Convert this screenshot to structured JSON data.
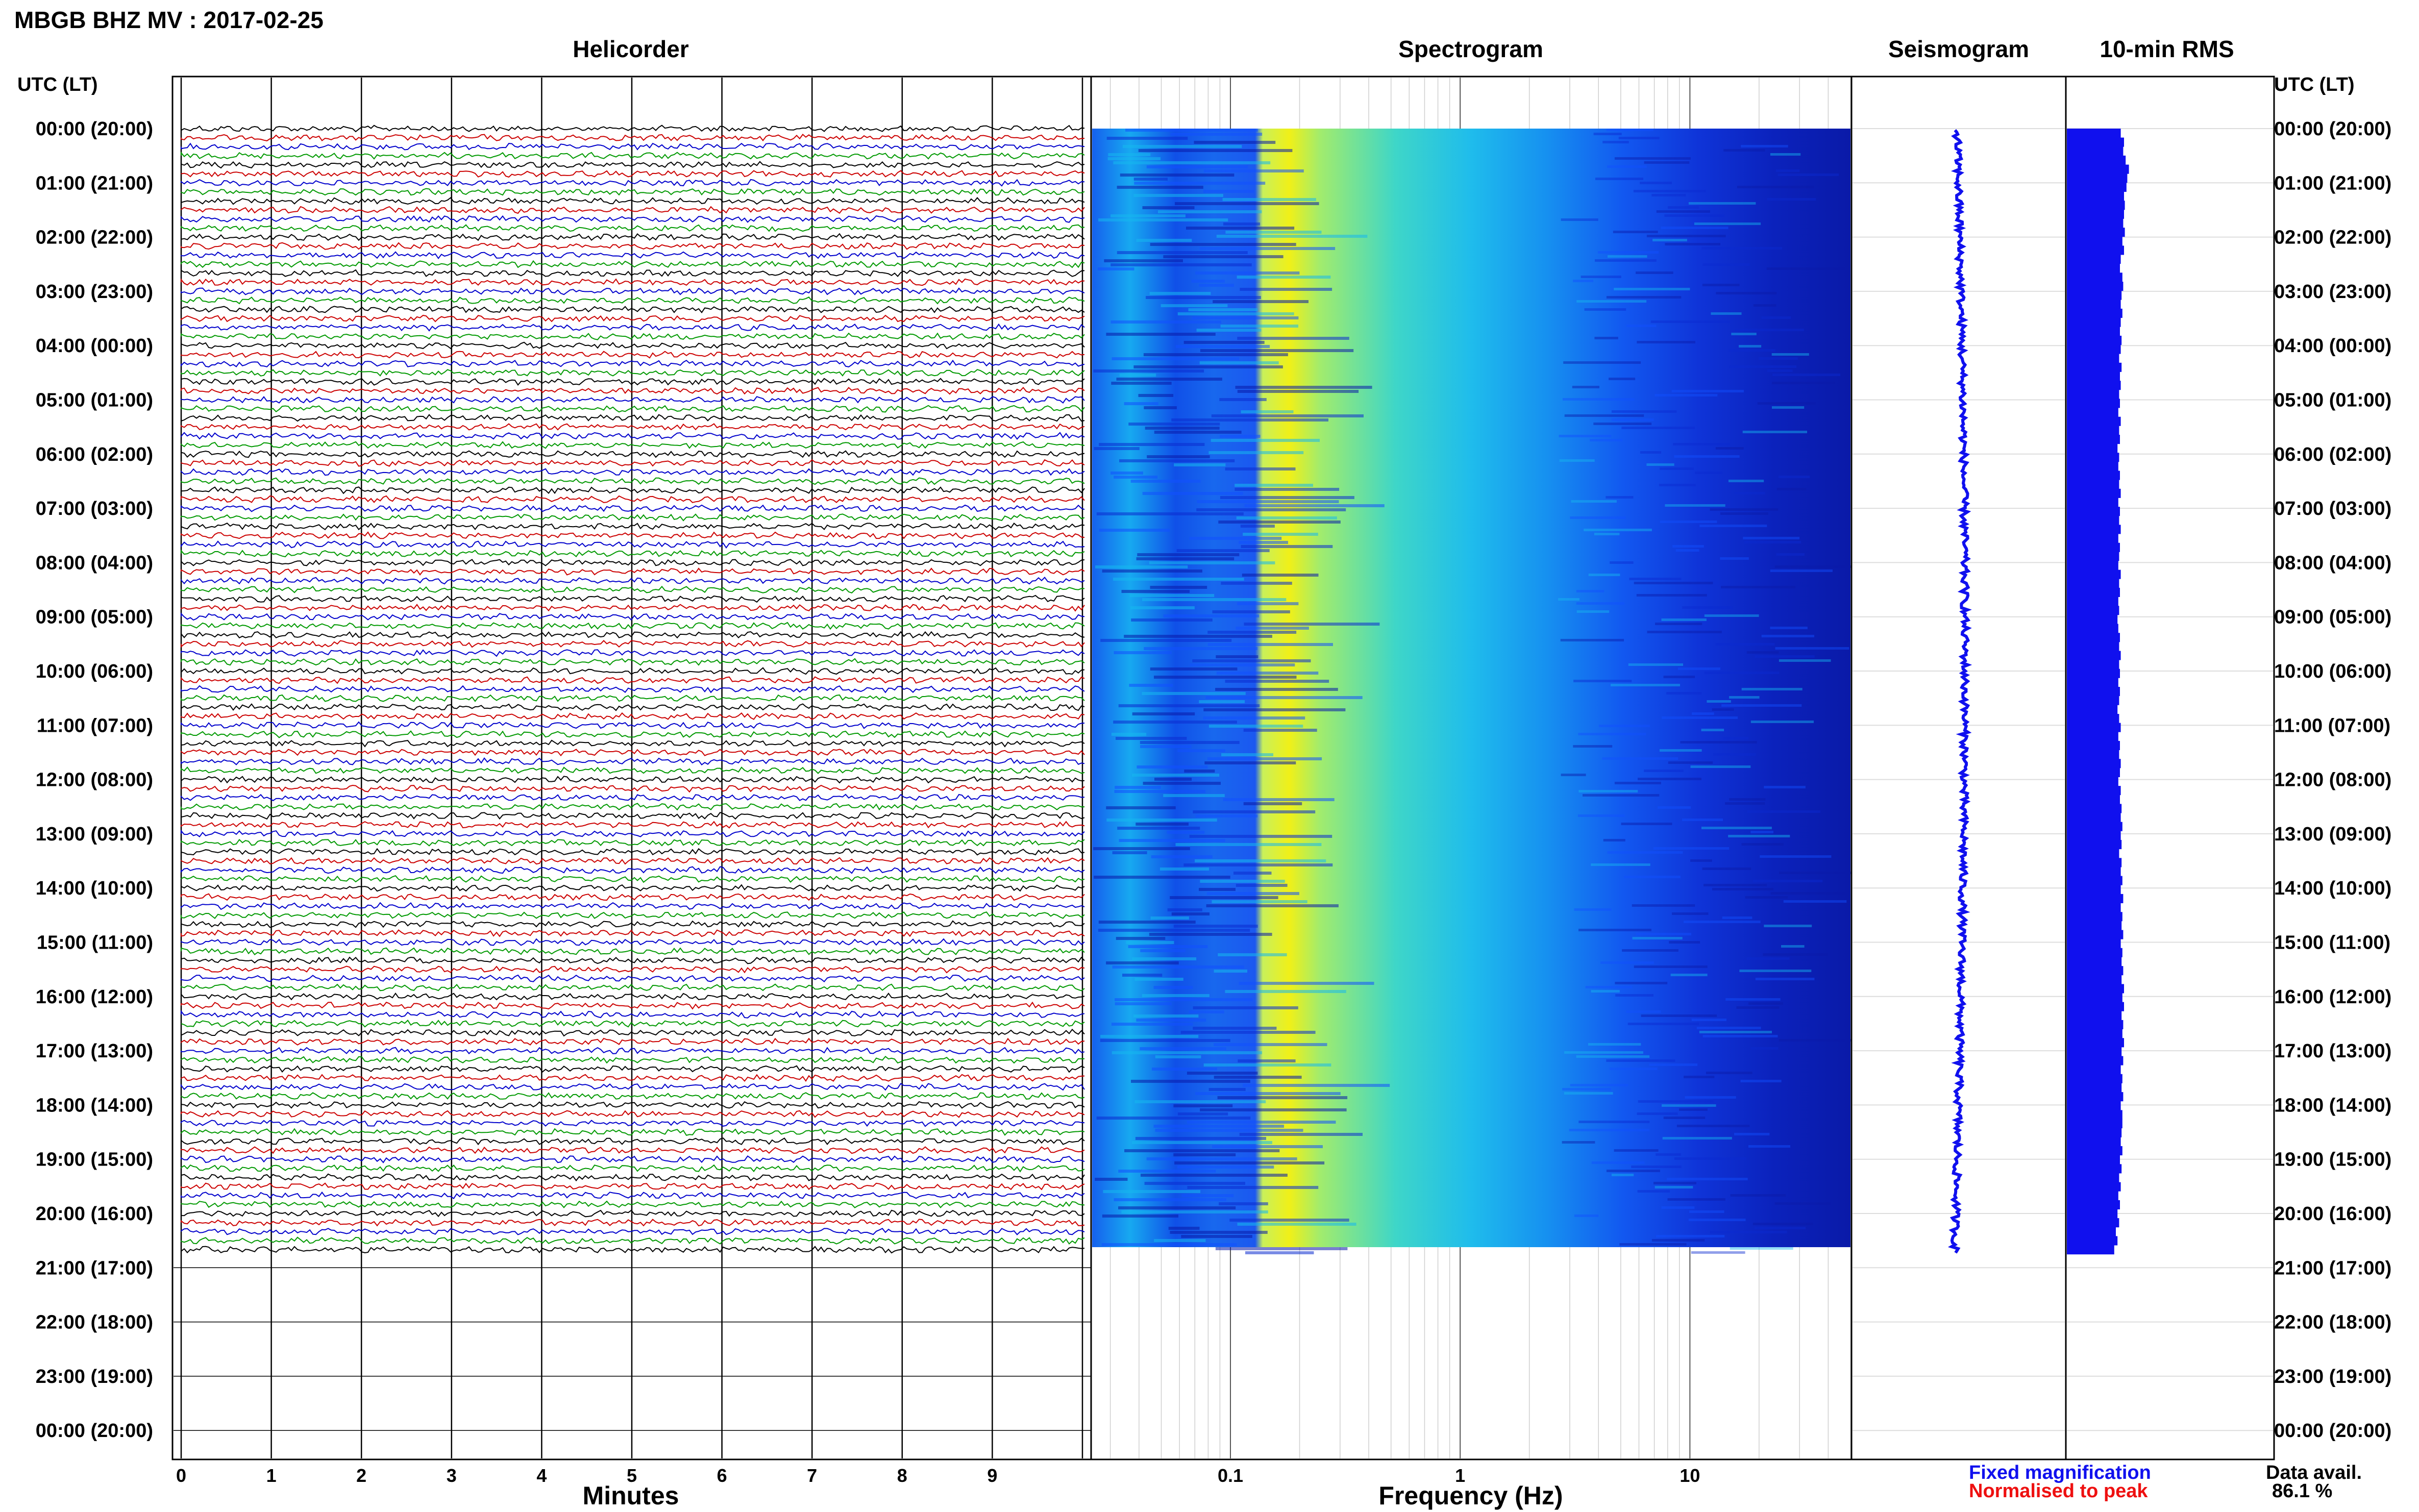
{
  "title": "MBGB BHZ MV : 2017-02-25",
  "panels": {
    "helicorder": "Helicorder",
    "spectrogram": "Spectrogram",
    "seismogram": "Seismogram",
    "rms": "10-min RMS"
  },
  "axis": {
    "left_label": "UTC (LT)",
    "right_label": "UTC (LT)",
    "minutes_label": "Minutes",
    "frequency_label": "Frequency (Hz)"
  },
  "footer": {
    "fixed": "Fixed magnification",
    "normalised": "Normalised to peak",
    "avail_label": "Data avail.",
    "avail_value": "86.1 %"
  },
  "colors": {
    "fixed": "#1010ee",
    "normalised": "#ee1010",
    "trace_colors": [
      "#000000",
      "#cc0000",
      "#0000cc",
      "#009900"
    ],
    "spectrogram_scale": [
      "#0a1aa8",
      "#1250ff",
      "#16b8ee",
      "#8be87a",
      "#f2f20a"
    ],
    "seismogram": "#1010ee",
    "rms": "#1010ee"
  },
  "chart_data": {
    "type": "heatmap",
    "station": "MBGB BHZ MV",
    "date": "2017-02-25",
    "hour_labels": [
      "00:00 (20:00)",
      "01:00 (21:00)",
      "02:00 (22:00)",
      "03:00 (23:00)",
      "04:00 (00:00)",
      "05:00 (01:00)",
      "06:00 (02:00)",
      "07:00 (03:00)",
      "08:00 (04:00)",
      "09:00 (05:00)",
      "10:00 (06:00)",
      "11:00 (07:00)",
      "12:00 (08:00)",
      "13:00 (09:00)",
      "14:00 (10:00)",
      "15:00 (11:00)",
      "16:00 (12:00)",
      "17:00 (13:00)",
      "18:00 (14:00)",
      "19:00 (15:00)",
      "20:00 (16:00)",
      "21:00 (17:00)",
      "22:00 (18:00)",
      "23:00 (19:00)",
      "00:00 (20:00)"
    ],
    "minutes_ticks": [
      "0",
      "1",
      "2",
      "3",
      "4",
      "5",
      "6",
      "7",
      "8",
      "9"
    ],
    "frequency_ticks": [
      "0.1",
      "1",
      "10"
    ],
    "frequency_range_hz": [
      0.025,
      50
    ],
    "frequency_scale": "log",
    "data_end_hour": 20.75,
    "data_availability_percent": 86.1,
    "rms_10min": [
      0.66,
      0.7,
      0.69,
      0.72,
      0.76,
      0.74,
      0.73,
      0.7,
      0.71,
      0.7,
      0.69,
      0.71,
      0.68,
      0.7,
      0.66,
      0.65,
      0.68,
      0.69,
      0.67,
      0.66,
      0.68,
      0.66,
      0.65,
      0.67,
      0.66,
      0.64,
      0.67,
      0.65,
      0.66,
      0.64,
      0.65,
      0.63,
      0.66,
      0.64,
      0.65,
      0.62,
      0.64,
      0.63,
      0.65,
      0.64,
      0.66,
      0.63,
      0.65,
      0.64,
      0.66,
      0.63,
      0.65,
      0.64,
      0.63,
      0.66,
      0.64,
      0.65,
      0.63,
      0.64,
      0.62,
      0.63,
      0.65,
      0.64,
      0.66,
      0.64,
      0.65,
      0.63,
      0.65,
      0.64,
      0.62,
      0.64,
      0.66,
      0.63,
      0.65,
      0.64,
      0.66,
      0.65,
      0.63,
      0.66,
      0.65,
      0.67,
      0.66,
      0.68,
      0.66,
      0.67,
      0.64,
      0.67,
      0.66,
      0.68,
      0.66,
      0.69,
      0.66,
      0.68,
      0.67,
      0.69,
      0.66,
      0.68,
      0.67,
      0.69,
      0.67,
      0.7,
      0.68,
      0.7,
      0.67,
      0.69,
      0.68,
      0.7,
      0.67,
      0.69,
      0.66,
      0.68,
      0.67,
      0.69,
      0.66,
      0.68,
      0.68,
      0.67,
      0.66,
      0.68,
      0.65,
      0.67,
      0.64,
      0.66,
      0.63,
      0.65,
      0.62,
      0.64,
      0.6,
      0.62,
      0.58
    ]
  }
}
